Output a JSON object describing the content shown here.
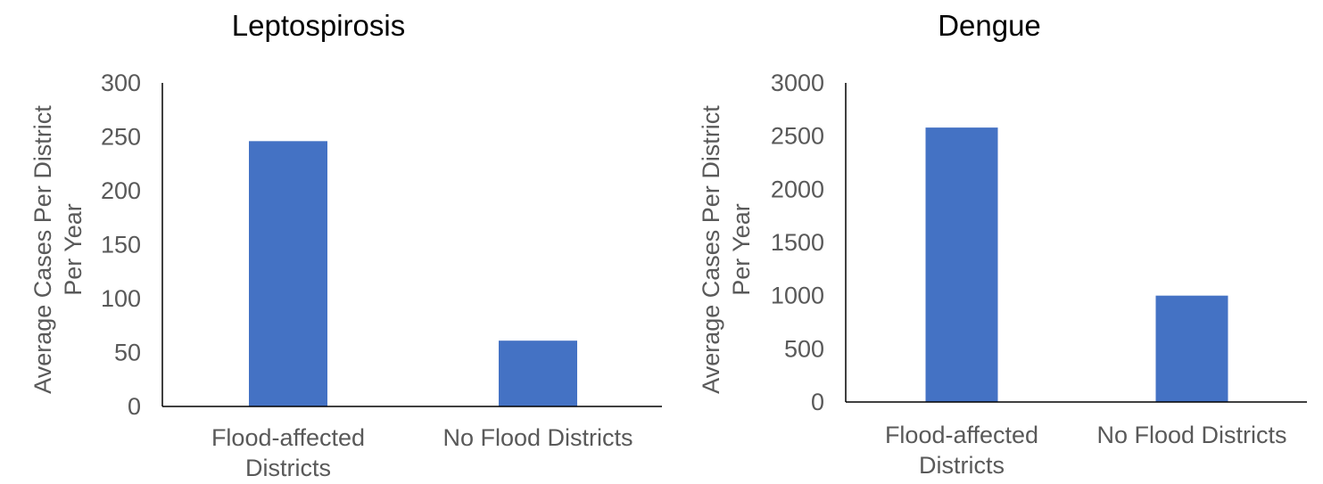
{
  "colors": {
    "bar": "#4472C4",
    "axis": "#000000",
    "text": "#595959",
    "title": "#000000"
  },
  "chart_data": [
    {
      "type": "bar",
      "title": "Leptospirosis",
      "categories": [
        [
          "Flood-affected",
          "Districts"
        ],
        [
          "No Flood Districts"
        ]
      ],
      "values": [
        246,
        61
      ],
      "ylabel": [
        "Average Cases Per District",
        "Per Year"
      ],
      "yticks": [
        "0",
        "50",
        "100",
        "150",
        "200",
        "250",
        "300"
      ],
      "ylim": [
        0,
        300
      ],
      "grid": false
    },
    {
      "type": "bar",
      "title": "Dengue",
      "categories": [
        [
          "Flood-affected",
          "Districts"
        ],
        [
          "No Flood Districts"
        ]
      ],
      "values": [
        2580,
        1000
      ],
      "ylabel": [
        "Average Cases Per District",
        "Per Year"
      ],
      "yticks": [
        "0",
        "500",
        "1000",
        "1500",
        "2000",
        "2500",
        "3000"
      ],
      "ylim": [
        0,
        3000
      ],
      "grid": false
    }
  ]
}
